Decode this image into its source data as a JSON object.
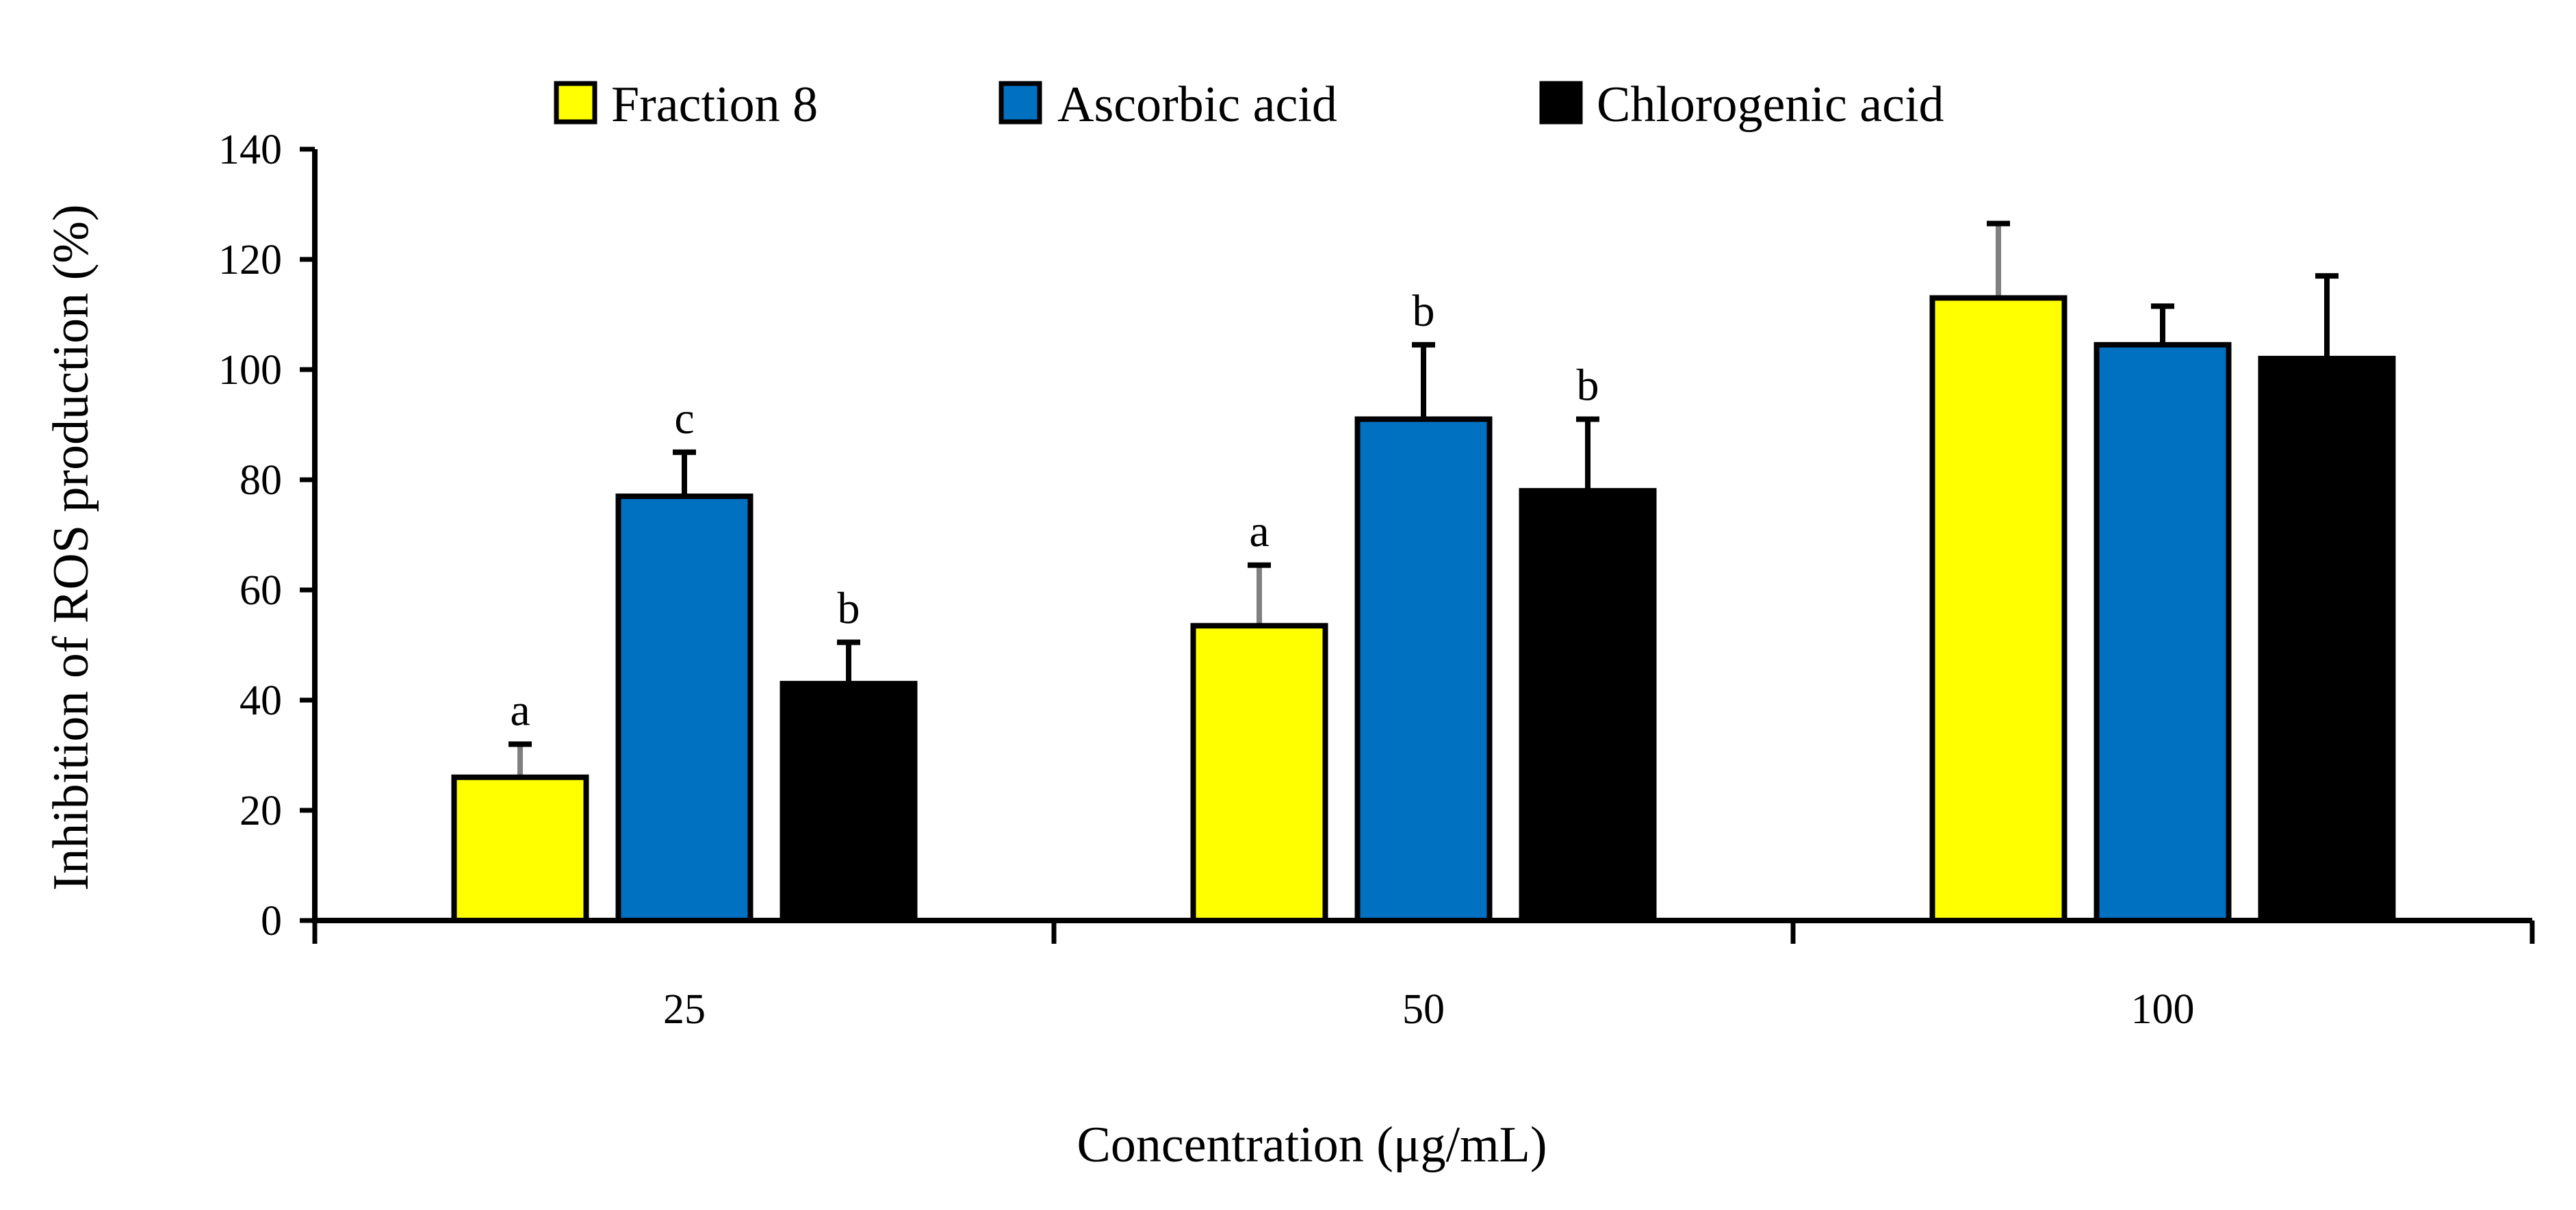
{
  "chart_data": {
    "type": "bar",
    "title": "",
    "xlabel": "Concentration (μg/mL)",
    "ylabel": "Inhibition of ROS production (%)",
    "categories": [
      "25",
      "50",
      "100"
    ],
    "ylim": [
      0,
      140
    ],
    "yticks": [
      0,
      20,
      40,
      60,
      80,
      100,
      120,
      140
    ],
    "legend_position": "top-center",
    "grid": false,
    "series": [
      {
        "name": "Fraction 8",
        "color": "#ffff00",
        "values": [
          26,
          53.5,
          113
        ],
        "errors": [
          6,
          11,
          13.5
        ],
        "error_color": "#808080",
        "labels": [
          "a",
          "a",
          ""
        ]
      },
      {
        "name": "Ascorbic acid",
        "color": "#0070c0",
        "values": [
          77,
          91,
          104.5
        ],
        "errors": [
          8,
          13.5,
          7
        ],
        "error_color": "#000000",
        "labels": [
          "c",
          "b",
          ""
        ]
      },
      {
        "name": "Chlorogenic acid",
        "color": "#000000",
        "values": [
          43,
          78,
          102
        ],
        "errors": [
          7.5,
          13,
          15
        ],
        "error_color": "#000000",
        "labels": [
          "b",
          "b",
          ""
        ]
      }
    ]
  }
}
